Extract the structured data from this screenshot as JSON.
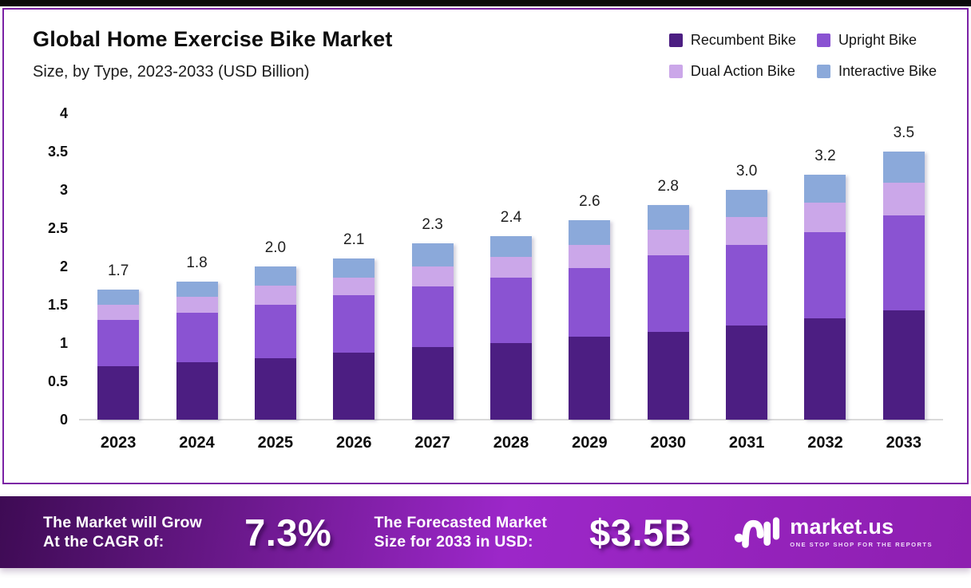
{
  "page": {
    "top_accent_color": "#0a0a0a",
    "card_border_color": "#7b21a5",
    "background": "#ffffff"
  },
  "header": {
    "title": "Global Home Exercise Bike Market",
    "subtitle": "Size, by Type, 2023-2033 (USD Billion)"
  },
  "chart_data": {
    "type": "bar",
    "stacked": true,
    "title": "Global Home Exercise Bike Market",
    "subtitle": "Size, by Type, 2023-2033 (USD Billion)",
    "xlabel": "",
    "ylabel": "",
    "ylim": [
      0,
      4
    ],
    "yticks": [
      0,
      0.5,
      1,
      1.5,
      2,
      2.5,
      3,
      3.5,
      4
    ],
    "ytick_labels": [
      "0",
      "0.5",
      "1",
      "1.5",
      "2",
      "2.5",
      "3",
      "3.5",
      "4"
    ],
    "grid": false,
    "legend_position": "top-right",
    "categories": [
      "2023",
      "2024",
      "2025",
      "2026",
      "2027",
      "2028",
      "2029",
      "2030",
      "2031",
      "2032",
      "2033"
    ],
    "series": [
      {
        "name": "Recumbent Bike",
        "color": "#4c1e82",
        "values": [
          0.7,
          0.75,
          0.8,
          0.87,
          0.95,
          1.0,
          1.08,
          1.15,
          1.23,
          1.32,
          1.43
        ]
      },
      {
        "name": "Upright Bike",
        "color": "#8a53d2",
        "values": [
          0.6,
          0.65,
          0.7,
          0.75,
          0.79,
          0.85,
          0.9,
          1.0,
          1.05,
          1.13,
          1.24
        ]
      },
      {
        "name": "Dual Action Bike",
        "color": "#cba7e9",
        "values": [
          0.2,
          0.2,
          0.25,
          0.23,
          0.26,
          0.28,
          0.3,
          0.33,
          0.37,
          0.38,
          0.42
        ]
      },
      {
        "name": "Interactive Bike",
        "color": "#8ba9da",
        "values": [
          0.2,
          0.2,
          0.25,
          0.25,
          0.3,
          0.27,
          0.32,
          0.32,
          0.35,
          0.37,
          0.41
        ]
      }
    ],
    "totals": [
      1.7,
      1.8,
      2.0,
      2.1,
      2.3,
      2.4,
      2.6,
      2.8,
      3.0,
      3.2,
      3.5
    ],
    "total_labels": [
      "1.7",
      "1.8",
      "2.0",
      "2.1",
      "2.3",
      "2.4",
      "2.6",
      "2.8",
      "3.0",
      "3.2",
      "3.5"
    ]
  },
  "banner": {
    "gradient": [
      "#3e0b54",
      "#9c27c9",
      "#8e1fb0"
    ],
    "growth_text_line1": "The Market will Grow",
    "growth_text_line2": "At the CAGR of:",
    "cagr_value": "7.3%",
    "forecast_text_line1": "The Forecasted Market",
    "forecast_text_line2": "Size for 2033 in USD:",
    "forecast_value": "$3.5B",
    "logo": {
      "name": "market.us",
      "tagline": "ONE STOP SHOP FOR THE REPORTS"
    }
  }
}
